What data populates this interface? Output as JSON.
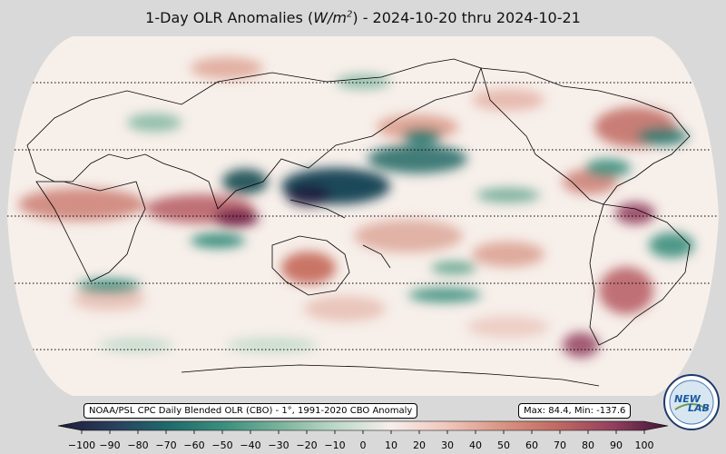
{
  "title": {
    "prefix": "1-Day OLR Anomalies (",
    "unit_base": "W/m",
    "unit_exp": "2",
    "suffix": ") - 2024-10-20 thru 2024-10-21"
  },
  "source_note": "NOAA/PSL CPC Daily Blended OLR (CBO) - 1°, 1991-2020 CBO Anomaly",
  "stats": {
    "label": "Max: 84.4,  Min: -137.6",
    "max": 84.4,
    "min": -137.6
  },
  "colorbar": {
    "ticks": [
      -100,
      -90,
      -80,
      -70,
      -60,
      -50,
      -40,
      -30,
      -20,
      -10,
      0,
      10,
      20,
      30,
      40,
      50,
      60,
      70,
      80,
      90,
      100
    ],
    "tick_labels": [
      "−100",
      "−90",
      "−80",
      "−70",
      "−60",
      "−50",
      "−40",
      "−30",
      "−20",
      "−10",
      "0",
      "10",
      "20",
      "30",
      "40",
      "50",
      "60",
      "70",
      "80",
      "90",
      "100"
    ],
    "range": [
      -100,
      100
    ],
    "extend": "both",
    "colormap": [
      "#1e1a38",
      "#2a3f5f",
      "#1f6a6a",
      "#3b8f7e",
      "#7ab39c",
      "#bcd8c8",
      "#f7eeea",
      "#f0c7bd",
      "#d99583",
      "#c06a62",
      "#93405f",
      "#3f1437"
    ]
  },
  "map": {
    "projection": "Robinson",
    "central_longitude": 180,
    "dotted_latitudes": [
      -60,
      -30,
      0,
      30,
      60
    ],
    "ocean_background": "#f7efea"
  },
  "logo": {
    "text_top": "NEW",
    "text_bottom": "LAB"
  }
}
